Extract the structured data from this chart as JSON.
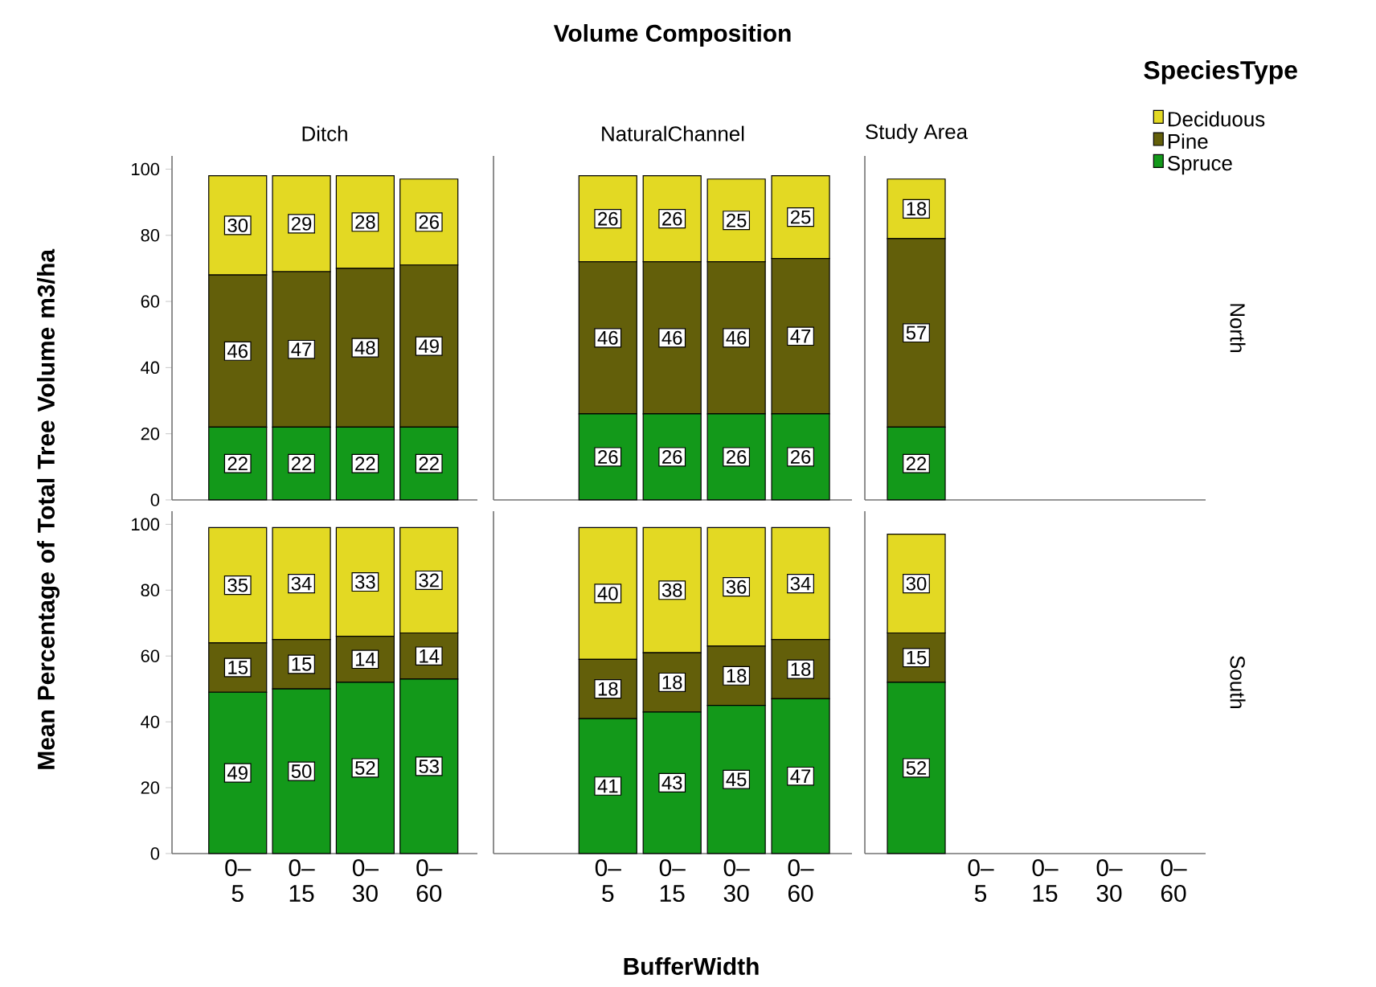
{
  "chart_data": [
    {
      "type": "bar",
      "stacked": true,
      "subtitle": "Ditch",
      "categories": [
        null,
        null,
        null,
        null
      ],
      "ylim": [
        0,
        104
      ],
      "yticks": [
        0,
        20,
        40,
        60,
        80,
        100
      ],
      "tick_labels": "y",
      "data_labels": true,
      "series": [
        {
          "color": "#13991a",
          "values": [
            22,
            22,
            22,
            22
          ]
        },
        {
          "color": "#635f0a",
          "values": [
            46,
            47,
            48,
            49
          ]
        },
        {
          "color": "#e3d923",
          "values": [
            30,
            29,
            28,
            26
          ]
        }
      ]
    },
    {
      "type": "bar",
      "stacked": true,
      "title": "Volume Composition",
      "subtitle": "NaturalChannel",
      "categories": [
        null,
        null,
        null,
        null
      ],
      "tick_labels": false,
      "data_labels": true,
      "series": [
        {
          "color": "#13991a",
          "values": [
            26,
            26,
            26,
            26
          ]
        },
        {
          "color": "#635f0a",
          "values": [
            46,
            46,
            46,
            47
          ]
        },
        {
          "color": "#e3d923",
          "values": [
            26,
            26,
            25,
            25
          ]
        }
      ]
    },
    {
      "type": "bar",
      "stacked": true,
      "subtitle": "Study Area",
      "y2label": "North",
      "categories": [
        null
      ],
      "tick_labels": false,
      "data_labels": true,
      "legend": "top right",
      "legend_title": "SpeciesType",
      "series": [
        {
          "name": "Spruce",
          "color": "#13991a",
          "values": [
            22
          ]
        },
        {
          "name": "Pine",
          "color": "#635f0a",
          "values": [
            57
          ]
        },
        {
          "name": "Deciduous",
          "color": "#e3d923",
          "values": [
            18
          ]
        }
      ]
    },
    {
      "type": "bar",
      "stacked": true,
      "ylabel": "Mean Percentage of Total Tree Volume m3/ha",
      "categories": [
        "0–5",
        "0–15",
        "0–30",
        "0–60"
      ],
      "ylim": [
        0,
        104
      ],
      "yticks": [
        0,
        20,
        40,
        60,
        80,
        100
      ],
      "data_labels": true,
      "series": [
        {
          "color": "#13991a",
          "values": [
            49,
            50,
            52,
            53
          ]
        },
        {
          "color": "#635f0a",
          "values": [
            15,
            15,
            14,
            14
          ]
        },
        {
          "color": "#e3d923",
          "values": [
            35,
            34,
            33,
            32
          ]
        }
      ]
    },
    {
      "type": "bar",
      "stacked": true,
      "xlabel": "BufferWidth",
      "categories": [
        "0–5",
        "0–15",
        "0–30",
        "0–60"
      ],
      "tick_labels": "x",
      "data_labels": true,
      "series": [
        {
          "color": "#13991a",
          "values": [
            41,
            43,
            45,
            47
          ]
        },
        {
          "color": "#635f0a",
          "values": [
            18,
            18,
            18,
            18
          ]
        },
        {
          "color": "#e3d923",
          "values": [
            40,
            38,
            36,
            34
          ]
        }
      ]
    },
    {
      "type": "bar",
      "stacked": true,
      "y2label": "South",
      "categories": [
        null,
        "0–5",
        "0–15",
        "0–30",
        "0–60"
      ],
      "tick_labels": "x",
      "data_labels": true,
      "series": [
        {
          "color": "#13991a",
          "values": [
            52,
            null,
            null,
            null,
            null
          ]
        },
        {
          "color": "#635f0a",
          "values": [
            15,
            null,
            null,
            null,
            null
          ]
        },
        {
          "color": "#e3d923",
          "values": [
            30,
            null,
            null,
            null,
            null
          ]
        }
      ]
    }
  ]
}
